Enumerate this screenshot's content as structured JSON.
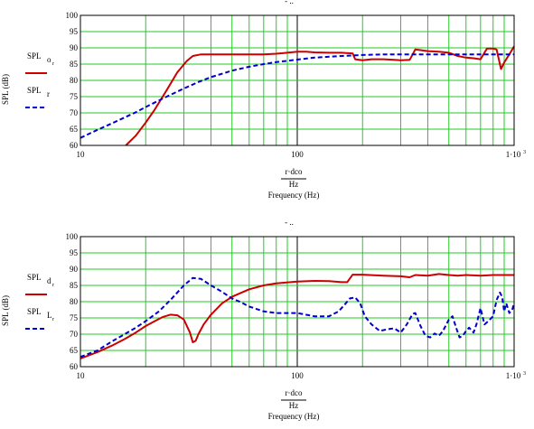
{
  "chart_data": [
    {
      "type": "line",
      "xscale": "log",
      "xlim": [
        10,
        1000
      ],
      "ylim": [
        60,
        100
      ],
      "yticks": [
        60,
        65,
        70,
        75,
        80,
        85,
        90,
        95,
        100
      ],
      "xtick_labels": [
        "10",
        "100",
        "1·10"
      ],
      "xtick_exp": "3",
      "title_dash": "- ..",
      "xlabel_expr": "r·dco",
      "xlabel_unit": "Hz",
      "xlabel": "Frequency (Hz)",
      "ylabel": "SPL (dB)",
      "legend": [
        {
          "name": "SPL",
          "sub": "o",
          "subsub": "r",
          "color": "#cc0000",
          "style": "solid"
        },
        {
          "name": "SPL",
          "sub": "r",
          "subsub": "",
          "color": "#0000cc",
          "style": "dashed"
        }
      ],
      "series": [
        {
          "color": "#cc0000",
          "style": "solid",
          "x": [
            16.2,
            18,
            20,
            22,
            25,
            28,
            31,
            33,
            36,
            40,
            50,
            60,
            70,
            80,
            90,
            100,
            110,
            120,
            140,
            160,
            180,
            185,
            200,
            220,
            250,
            280,
            300,
            330,
            350,
            370,
            400,
            450,
            500,
            550,
            600,
            650,
            700,
            750,
            800,
            830,
            870,
            900,
            950,
            1000
          ],
          "y": [
            60,
            63,
            67,
            71,
            77,
            82.5,
            86,
            87.5,
            88,
            88,
            88,
            88,
            88,
            88.2,
            88.5,
            88.8,
            88.8,
            88.6,
            88.5,
            88.5,
            88.3,
            86.5,
            86.2,
            86.5,
            86.5,
            86.3,
            86.2,
            86.3,
            89.5,
            89.3,
            89.0,
            88.8,
            88.5,
            87.5,
            87.0,
            86.8,
            86.5,
            89.8,
            89.8,
            89.5,
            83.5,
            85.5,
            88.0,
            90.5
          ]
        },
        {
          "color": "#0000cc",
          "style": "dashed",
          "x": [
            10,
            12,
            14,
            16,
            18,
            20,
            25,
            30,
            35,
            40,
            50,
            60,
            70,
            80,
            100,
            120,
            150,
            200,
            250,
            300,
            400,
            500,
            700,
            1000
          ],
          "y": [
            62.3,
            64.8,
            66.8,
            68.6,
            70.2,
            71.8,
            75.0,
            77.5,
            79.5,
            81.0,
            83.0,
            84.2,
            85.0,
            85.6,
            86.4,
            87.0,
            87.4,
            87.8,
            88.0,
            88.0,
            88.0,
            88.0,
            88.0,
            88.0
          ]
        }
      ]
    },
    {
      "type": "line",
      "xscale": "log",
      "xlim": [
        10,
        1000
      ],
      "ylim": [
        60,
        100
      ],
      "yticks": [
        60,
        65,
        70,
        75,
        80,
        85,
        90,
        95,
        100
      ],
      "xtick_labels": [
        "10",
        "100",
        "1·10"
      ],
      "xtick_exp": "3",
      "title_dash": "- ..",
      "xlabel_expr": "r·dco",
      "xlabel_unit": "Hz",
      "xlabel": "Frequency (Hz)",
      "ylabel": "SPL (dB)",
      "legend": [
        {
          "name": "SPL",
          "sub": "d",
          "subsub": "r",
          "color": "#cc0000",
          "style": "solid"
        },
        {
          "name": "SPL",
          "sub": "L",
          "subsub": "r",
          "color": "#0000cc",
          "style": "dashed"
        }
      ],
      "series": [
        {
          "color": "#cc0000",
          "style": "solid",
          "x": [
            10,
            12,
            14,
            16,
            18,
            20,
            22,
            24,
            26,
            28,
            30,
            32,
            33,
            34,
            35,
            37,
            40,
            45,
            50,
            60,
            70,
            80,
            100,
            120,
            140,
            160,
            170,
            180,
            200,
            250,
            300,
            330,
            350,
            400,
            450,
            500,
            550,
            600,
            700,
            800,
            1000
          ],
          "y": [
            62.5,
            64.5,
            66.5,
            68.5,
            70.5,
            72.5,
            74.0,
            75.3,
            76.0,
            75.8,
            74.5,
            70.5,
            67.5,
            68.0,
            70.0,
            73.0,
            76.0,
            79.5,
            81.5,
            83.8,
            85.0,
            85.6,
            86.2,
            86.4,
            86.3,
            86.0,
            86.0,
            88.3,
            88.3,
            88.0,
            87.8,
            87.5,
            88.2,
            88.0,
            88.5,
            88.2,
            88.0,
            88.2,
            88.0,
            88.2,
            88.2
          ]
        },
        {
          "color": "#0000cc",
          "style": "dashed",
          "x": [
            10,
            12,
            14,
            16,
            18,
            20,
            23,
            26,
            30,
            33,
            36,
            40,
            45,
            50,
            55,
            60,
            70,
            80,
            100,
            120,
            140,
            155,
            165,
            175,
            185,
            195,
            205,
            220,
            240,
            260,
            280,
            300,
            320,
            340,
            350,
            370,
            390,
            410,
            430,
            450,
            470,
            500,
            520,
            540,
            560,
            580,
            600,
            620,
            650,
            670,
            700,
            730,
            760,
            800,
            830,
            860,
            880,
            900,
            920,
            950,
            980,
            1000
          ],
          "y": [
            63,
            65,
            67.8,
            70,
            72,
            74,
            77,
            80.5,
            85,
            87.3,
            87.0,
            85.0,
            83.0,
            81.0,
            79.8,
            78.5,
            77.0,
            76.5,
            76.5,
            75.5,
            75.5,
            77.0,
            79.0,
            81.0,
            81.3,
            79.5,
            75.5,
            73.0,
            71.0,
            71.5,
            71.8,
            70.5,
            73.0,
            76.2,
            76.5,
            72.5,
            69.5,
            69.0,
            70.2,
            69.5,
            71.0,
            74.5,
            75.5,
            72.0,
            69.0,
            69.5,
            71.0,
            72.0,
            70.5,
            73.0,
            78.0,
            73.0,
            74.0,
            75.5,
            80.5,
            82.8,
            81.5,
            77.0,
            79.5,
            76.5,
            77.5,
            79.5
          ]
        }
      ]
    }
  ]
}
